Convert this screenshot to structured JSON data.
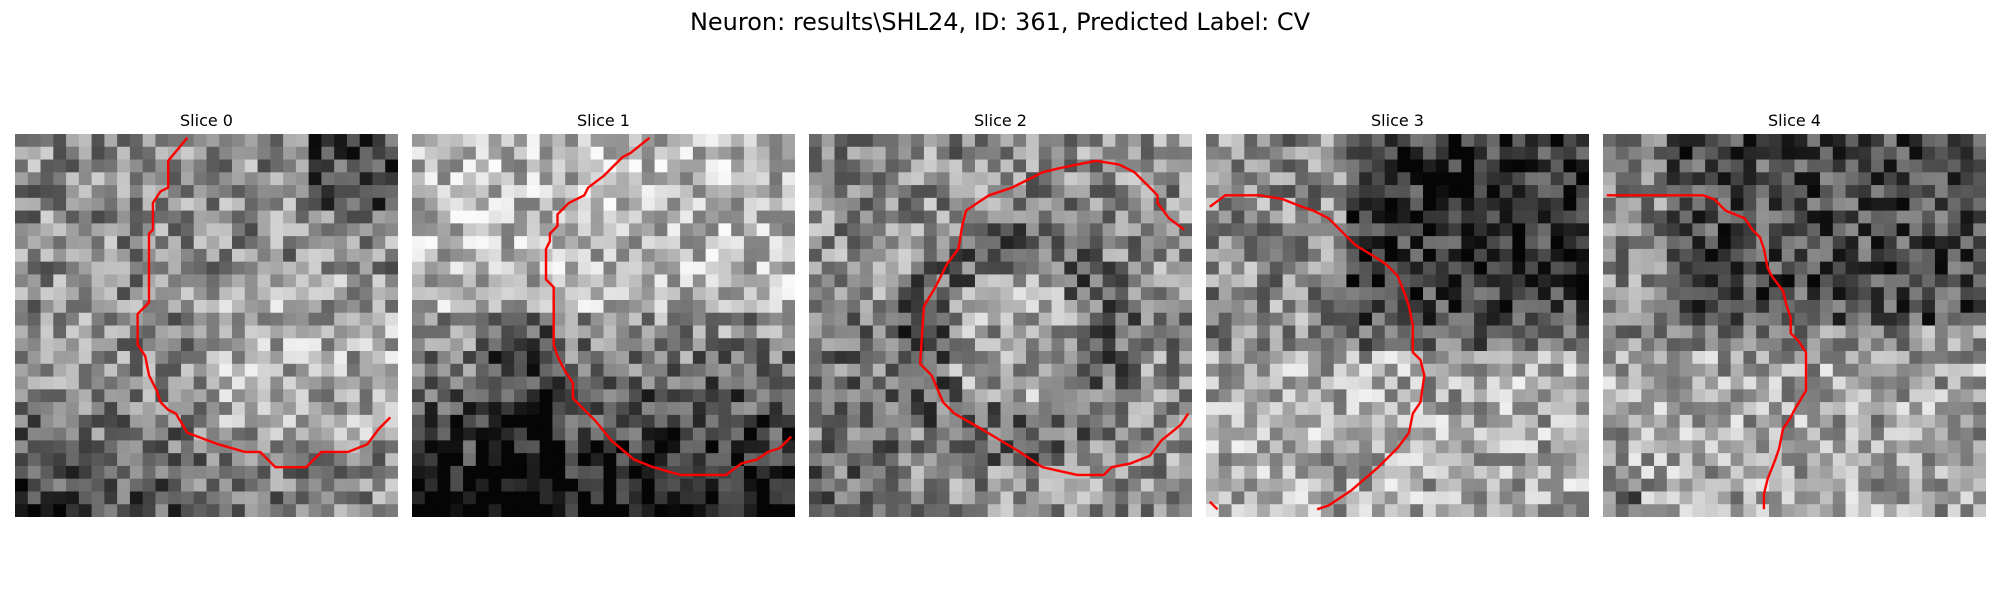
{
  "figure": {
    "title": "Neuron: results\\SHL24, ID: 361, Predicted Label: CV"
  },
  "panels": [
    {
      "title": "Slice 0",
      "seed": 11,
      "mode": "s0"
    },
    {
      "title": "Slice 1",
      "seed": 23,
      "mode": "s1"
    },
    {
      "title": "Slice 2",
      "seed": 37,
      "mode": "s2"
    },
    {
      "title": "Slice 3",
      "seed": 41,
      "mode": "s3"
    },
    {
      "title": "Slice 4",
      "seed": 53,
      "mode": "s4"
    }
  ],
  "colors": {
    "contour": "#ff0000"
  }
}
